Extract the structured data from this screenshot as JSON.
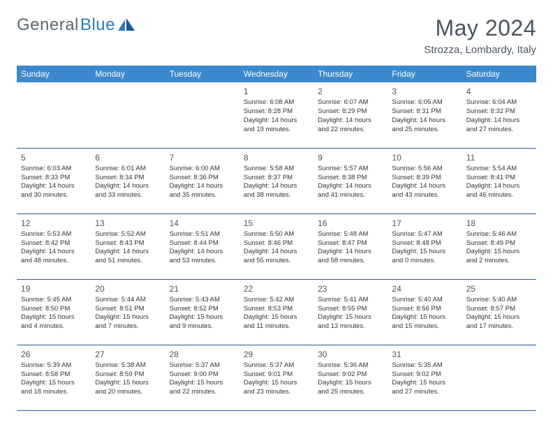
{
  "logo": {
    "text1": "General",
    "text2": "Blue"
  },
  "title": "May 2024",
  "subtitle": "Strozza, Lombardy, Italy",
  "colors": {
    "header_bg": "#3b88cc",
    "header_fg": "#ffffff",
    "border": "#2a5a8a",
    "title_color": "#4a5560",
    "logo_gray": "#5c6770",
    "logo_blue": "#2f78bd"
  },
  "day_headers": [
    "Sunday",
    "Monday",
    "Tuesday",
    "Wednesday",
    "Thursday",
    "Friday",
    "Saturday"
  ],
  "weeks": [
    [
      null,
      null,
      null,
      {
        "n": "1",
        "sr": "Sunrise: 6:08 AM",
        "ss": "Sunset: 8:28 PM",
        "d1": "Daylight: 14 hours",
        "d2": "and 19 minutes."
      },
      {
        "n": "2",
        "sr": "Sunrise: 6:07 AM",
        "ss": "Sunset: 8:29 PM",
        "d1": "Daylight: 14 hours",
        "d2": "and 22 minutes."
      },
      {
        "n": "3",
        "sr": "Sunrise: 6:05 AM",
        "ss": "Sunset: 8:31 PM",
        "d1": "Daylight: 14 hours",
        "d2": "and 25 minutes."
      },
      {
        "n": "4",
        "sr": "Sunrise: 6:04 AM",
        "ss": "Sunset: 8:32 PM",
        "d1": "Daylight: 14 hours",
        "d2": "and 27 minutes."
      }
    ],
    [
      {
        "n": "5",
        "sr": "Sunrise: 6:03 AM",
        "ss": "Sunset: 8:33 PM",
        "d1": "Daylight: 14 hours",
        "d2": "and 30 minutes."
      },
      {
        "n": "6",
        "sr": "Sunrise: 6:01 AM",
        "ss": "Sunset: 8:34 PM",
        "d1": "Daylight: 14 hours",
        "d2": "and 33 minutes."
      },
      {
        "n": "7",
        "sr": "Sunrise: 6:00 AM",
        "ss": "Sunset: 8:36 PM",
        "d1": "Daylight: 14 hours",
        "d2": "and 35 minutes."
      },
      {
        "n": "8",
        "sr": "Sunrise: 5:58 AM",
        "ss": "Sunset: 8:37 PM",
        "d1": "Daylight: 14 hours",
        "d2": "and 38 minutes."
      },
      {
        "n": "9",
        "sr": "Sunrise: 5:57 AM",
        "ss": "Sunset: 8:38 PM",
        "d1": "Daylight: 14 hours",
        "d2": "and 41 minutes."
      },
      {
        "n": "10",
        "sr": "Sunrise: 5:56 AM",
        "ss": "Sunset: 8:39 PM",
        "d1": "Daylight: 14 hours",
        "d2": "and 43 minutes."
      },
      {
        "n": "11",
        "sr": "Sunrise: 5:54 AM",
        "ss": "Sunset: 8:41 PM",
        "d1": "Daylight: 14 hours",
        "d2": "and 46 minutes."
      }
    ],
    [
      {
        "n": "12",
        "sr": "Sunrise: 5:53 AM",
        "ss": "Sunset: 8:42 PM",
        "d1": "Daylight: 14 hours",
        "d2": "and 48 minutes."
      },
      {
        "n": "13",
        "sr": "Sunrise: 5:52 AM",
        "ss": "Sunset: 8:43 PM",
        "d1": "Daylight: 14 hours",
        "d2": "and 51 minutes."
      },
      {
        "n": "14",
        "sr": "Sunrise: 5:51 AM",
        "ss": "Sunset: 8:44 PM",
        "d1": "Daylight: 14 hours",
        "d2": "and 53 minutes."
      },
      {
        "n": "15",
        "sr": "Sunrise: 5:50 AM",
        "ss": "Sunset: 8:46 PM",
        "d1": "Daylight: 14 hours",
        "d2": "and 55 minutes."
      },
      {
        "n": "16",
        "sr": "Sunrise: 5:48 AM",
        "ss": "Sunset: 8:47 PM",
        "d1": "Daylight: 14 hours",
        "d2": "and 58 minutes."
      },
      {
        "n": "17",
        "sr": "Sunrise: 5:47 AM",
        "ss": "Sunset: 8:48 PM",
        "d1": "Daylight: 15 hours",
        "d2": "and 0 minutes."
      },
      {
        "n": "18",
        "sr": "Sunrise: 5:46 AM",
        "ss": "Sunset: 8:49 PM",
        "d1": "Daylight: 15 hours",
        "d2": "and 2 minutes."
      }
    ],
    [
      {
        "n": "19",
        "sr": "Sunrise: 5:45 AM",
        "ss": "Sunset: 8:50 PM",
        "d1": "Daylight: 15 hours",
        "d2": "and 4 minutes."
      },
      {
        "n": "20",
        "sr": "Sunrise: 5:44 AM",
        "ss": "Sunset: 8:51 PM",
        "d1": "Daylight: 15 hours",
        "d2": "and 7 minutes."
      },
      {
        "n": "21",
        "sr": "Sunrise: 5:43 AM",
        "ss": "Sunset: 8:52 PM",
        "d1": "Daylight: 15 hours",
        "d2": "and 9 minutes."
      },
      {
        "n": "22",
        "sr": "Sunrise: 5:42 AM",
        "ss": "Sunset: 8:53 PM",
        "d1": "Daylight: 15 hours",
        "d2": "and 11 minutes."
      },
      {
        "n": "23",
        "sr": "Sunrise: 5:41 AM",
        "ss": "Sunset: 8:55 PM",
        "d1": "Daylight: 15 hours",
        "d2": "and 13 minutes."
      },
      {
        "n": "24",
        "sr": "Sunrise: 5:40 AM",
        "ss": "Sunset: 8:56 PM",
        "d1": "Daylight: 15 hours",
        "d2": "and 15 minutes."
      },
      {
        "n": "25",
        "sr": "Sunrise: 5:40 AM",
        "ss": "Sunset: 8:57 PM",
        "d1": "Daylight: 15 hours",
        "d2": "and 17 minutes."
      }
    ],
    [
      {
        "n": "26",
        "sr": "Sunrise: 5:39 AM",
        "ss": "Sunset: 8:58 PM",
        "d1": "Daylight: 15 hours",
        "d2": "and 18 minutes."
      },
      {
        "n": "27",
        "sr": "Sunrise: 5:38 AM",
        "ss": "Sunset: 8:59 PM",
        "d1": "Daylight: 15 hours",
        "d2": "and 20 minutes."
      },
      {
        "n": "28",
        "sr": "Sunrise: 5:37 AM",
        "ss": "Sunset: 9:00 PM",
        "d1": "Daylight: 15 hours",
        "d2": "and 22 minutes."
      },
      {
        "n": "29",
        "sr": "Sunrise: 5:37 AM",
        "ss": "Sunset: 9:01 PM",
        "d1": "Daylight: 15 hours",
        "d2": "and 23 minutes."
      },
      {
        "n": "30",
        "sr": "Sunrise: 5:36 AM",
        "ss": "Sunset: 9:02 PM",
        "d1": "Daylight: 15 hours",
        "d2": "and 25 minutes."
      },
      {
        "n": "31",
        "sr": "Sunrise: 5:35 AM",
        "ss": "Sunset: 9:02 PM",
        "d1": "Daylight: 15 hours",
        "d2": "and 27 minutes."
      },
      null
    ]
  ]
}
